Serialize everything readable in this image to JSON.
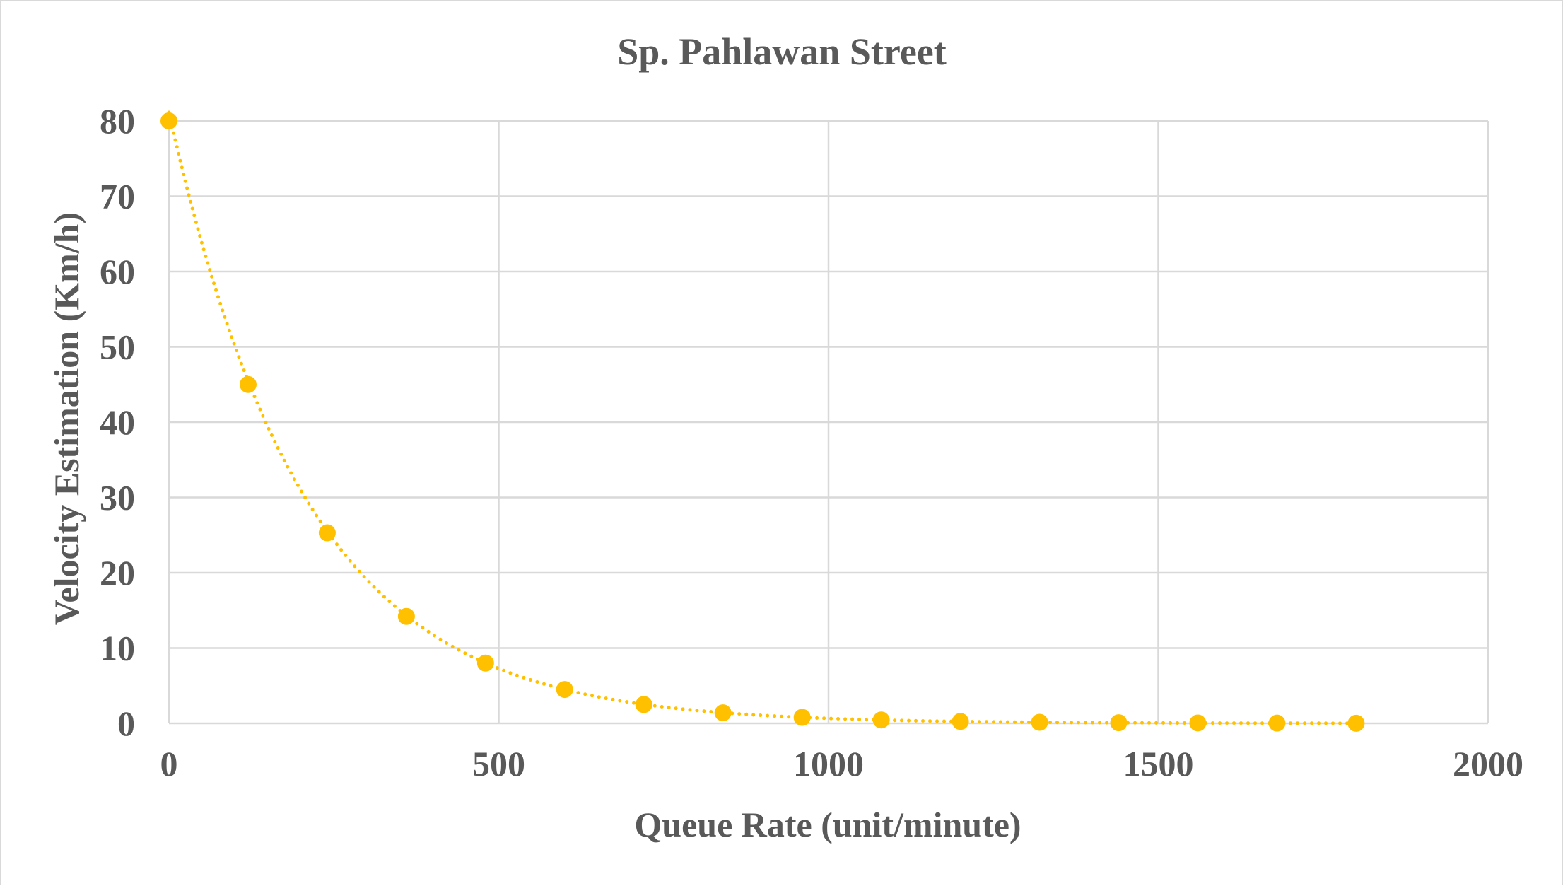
{
  "chart_data": {
    "type": "scatter",
    "title": "Sp. Pahlawan Street",
    "xlabel": "Queue Rate (unit/minute)",
    "ylabel": "Velocity Estimation (Km/h)",
    "xlim": [
      0,
      2000
    ],
    "ylim": [
      0,
      80
    ],
    "x_ticks": [
      0,
      500,
      1000,
      1500,
      2000
    ],
    "y_ticks": [
      0,
      10,
      20,
      30,
      40,
      50,
      60,
      70,
      80
    ],
    "grid": true,
    "legend": "none",
    "trendline": "exponential",
    "series": [
      {
        "color": "#ffc000",
        "points": [
          {
            "x": 0,
            "y": 80
          },
          {
            "x": 120,
            "y": 45
          },
          {
            "x": 240,
            "y": 25.3
          },
          {
            "x": 360,
            "y": 14.2
          },
          {
            "x": 480,
            "y": 8
          },
          {
            "x": 600,
            "y": 4.5
          },
          {
            "x": 720,
            "y": 2.5
          },
          {
            "x": 840,
            "y": 1.4
          },
          {
            "x": 960,
            "y": 0.8
          },
          {
            "x": 1080,
            "y": 0.45
          },
          {
            "x": 1200,
            "y": 0.25
          },
          {
            "x": 1320,
            "y": 0.14
          },
          {
            "x": 1440,
            "y": 0.08
          },
          {
            "x": 1560,
            "y": 0.05
          },
          {
            "x": 1680,
            "y": 0.03
          },
          {
            "x": 1800,
            "y": 0.01
          }
        ]
      }
    ]
  }
}
